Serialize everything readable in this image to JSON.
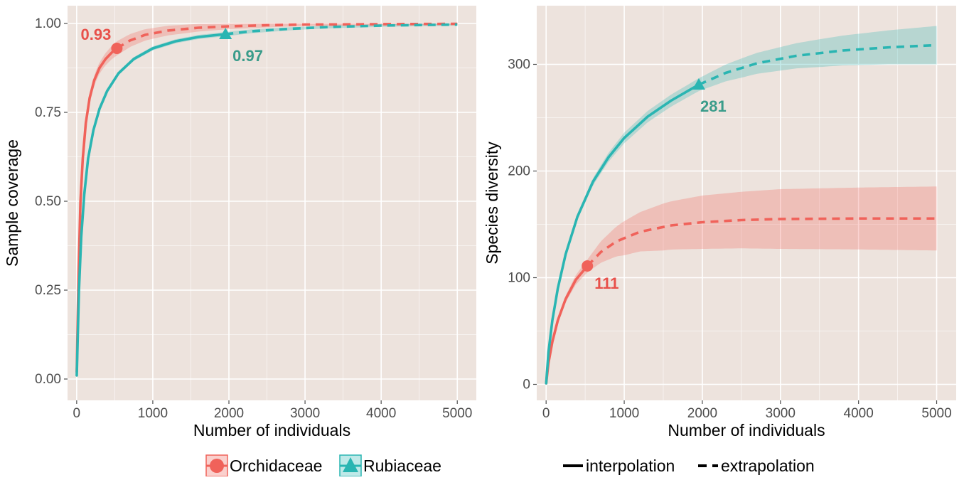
{
  "colors": {
    "Orchidaceae": "#F0625A",
    "Rubiaceae": "#2AB5B2",
    "Orchidaceae_label": "#E8504A",
    "Rubiaceae_label": "#3A9C8A",
    "panel_bg": "#EDE3DD",
    "grid": "#FFFFFF"
  },
  "legend": {
    "groups": [
      {
        "name": "Orchidaceae",
        "shape": "circle",
        "color": "#F0625A"
      },
      {
        "name": "Rubiaceae",
        "shape": "triangle",
        "color": "#2AB5B2"
      }
    ],
    "methods": [
      {
        "name": "interpolation",
        "style": "solid"
      },
      {
        "name": "extrapolation",
        "style": "dashed"
      }
    ]
  },
  "chart_data": [
    {
      "type": "line",
      "panel": "left",
      "xlabel": "Number of individuals",
      "ylabel": "Sample coverage",
      "xlim": [
        -120,
        5250
      ],
      "ylim": [
        -0.06,
        1.05
      ],
      "xticks": [
        0,
        1000,
        2000,
        3000,
        4000,
        5000
      ],
      "yticks": [
        0.0,
        0.25,
        0.5,
        0.75,
        1.0
      ],
      "ytick_labels": [
        "0.00",
        "0.25",
        "0.50",
        "0.75",
        "1.00"
      ],
      "grid": true,
      "series": [
        {
          "name": "Orchidaceae",
          "color": "#F0625A",
          "interpolation": [
            [
              1,
              0.02
            ],
            [
              25,
              0.3
            ],
            [
              50,
              0.5
            ],
            [
              80,
              0.62
            ],
            [
              120,
              0.72
            ],
            [
              170,
              0.79
            ],
            [
              230,
              0.84
            ],
            [
              300,
              0.875
            ],
            [
              380,
              0.9
            ],
            [
              460,
              0.918
            ],
            [
              528,
              0.93
            ]
          ],
          "extrapolation": [
            [
              528,
              0.93
            ],
            [
              700,
              0.952
            ],
            [
              900,
              0.968
            ],
            [
              1200,
              0.98
            ],
            [
              1600,
              0.988
            ],
            [
              2000,
              0.992
            ],
            [
              2500,
              0.995
            ],
            [
              3000,
              0.997
            ],
            [
              4000,
              0.998
            ],
            [
              5000,
              0.999
            ]
          ],
          "band_halfwidth": [
            [
              1,
              0.01
            ],
            [
              528,
              0.02
            ],
            [
              1000,
              0.015
            ],
            [
              2000,
              0.008
            ],
            [
              3000,
              0.004
            ],
            [
              5000,
              0.002
            ]
          ],
          "reference_point": {
            "x": 528,
            "y": 0.93,
            "label": "0.93"
          }
        },
        {
          "name": "Rubiaceae",
          "color": "#2AB5B2",
          "interpolation": [
            [
              1,
              0.01
            ],
            [
              30,
              0.25
            ],
            [
              60,
              0.4
            ],
            [
              100,
              0.52
            ],
            [
              150,
              0.62
            ],
            [
              220,
              0.7
            ],
            [
              300,
              0.76
            ],
            [
              400,
              0.81
            ],
            [
              550,
              0.86
            ],
            [
              750,
              0.9
            ],
            [
              1000,
              0.93
            ],
            [
              1300,
              0.95
            ],
            [
              1600,
              0.962
            ],
            [
              1955,
              0.97
            ]
          ],
          "extrapolation": [
            [
              1955,
              0.97
            ],
            [
              2300,
              0.978
            ],
            [
              2800,
              0.985
            ],
            [
              3300,
              0.99
            ],
            [
              4000,
              0.994
            ],
            [
              5000,
              0.997
            ]
          ],
          "band_halfwidth": [
            [
              1,
              0.005
            ],
            [
              1955,
              0.006
            ],
            [
              3000,
              0.004
            ],
            [
              5000,
              0.003
            ]
          ],
          "reference_point": {
            "x": 1955,
            "y": 0.97,
            "label": "0.97"
          }
        }
      ]
    },
    {
      "type": "line",
      "panel": "right",
      "xlabel": "Number of individuals",
      "ylabel": "Species diversity",
      "xlim": [
        -120,
        5250
      ],
      "ylim": [
        -15,
        355
      ],
      "xticks": [
        0,
        1000,
        2000,
        3000,
        4000,
        5000
      ],
      "yticks": [
        0,
        100,
        200,
        300
      ],
      "ytick_labels": [
        "0",
        "100",
        "200",
        "300"
      ],
      "grid": true,
      "series": [
        {
          "name": "Orchidaceae",
          "color": "#F0625A",
          "interpolation": [
            [
              1,
              1
            ],
            [
              30,
              20
            ],
            [
              80,
              40
            ],
            [
              150,
              60
            ],
            [
              250,
              80
            ],
            [
              380,
              98
            ],
            [
              528,
              111
            ]
          ],
          "extrapolation": [
            [
              528,
              111
            ],
            [
              700,
              124
            ],
            [
              900,
              134
            ],
            [
              1200,
              143
            ],
            [
              1600,
              149
            ],
            [
              2000,
              152
            ],
            [
              2500,
              154
            ],
            [
              3000,
              155
            ],
            [
              4000,
              155.5
            ],
            [
              5000,
              155.5
            ]
          ],
          "band_halfwidth": [
            [
              1,
              0.5
            ],
            [
              528,
              6
            ],
            [
              700,
              10
            ],
            [
              1000,
              16
            ],
            [
              1500,
              22
            ],
            [
              2000,
              25
            ],
            [
              3000,
              28
            ],
            [
              5000,
              30
            ]
          ],
          "reference_point": {
            "x": 528,
            "y": 111,
            "label": "111"
          }
        },
        {
          "name": "Rubiaceae",
          "color": "#2AB5B2",
          "interpolation": [
            [
              1,
              1
            ],
            [
              30,
              30
            ],
            [
              80,
              60
            ],
            [
              150,
              90
            ],
            [
              250,
              122
            ],
            [
              400,
              157
            ],
            [
              600,
              190
            ],
            [
              800,
              213
            ],
            [
              1000,
              231
            ],
            [
              1300,
              251
            ],
            [
              1600,
              266
            ],
            [
              1955,
              281
            ]
          ],
          "extrapolation": [
            [
              1955,
              281
            ],
            [
              2300,
              292
            ],
            [
              2700,
              301
            ],
            [
              3200,
              308
            ],
            [
              3800,
              313
            ],
            [
              4400,
              316
            ],
            [
              5000,
              318
            ]
          ],
          "band_halfwidth": [
            [
              1,
              0.5
            ],
            [
              500,
              3
            ],
            [
              1000,
              5
            ],
            [
              1955,
              6
            ],
            [
              2500,
              9
            ],
            [
              3500,
              13
            ],
            [
              5000,
              18
            ]
          ],
          "reference_point": {
            "x": 1955,
            "y": 281,
            "label": "281"
          }
        }
      ]
    }
  ]
}
